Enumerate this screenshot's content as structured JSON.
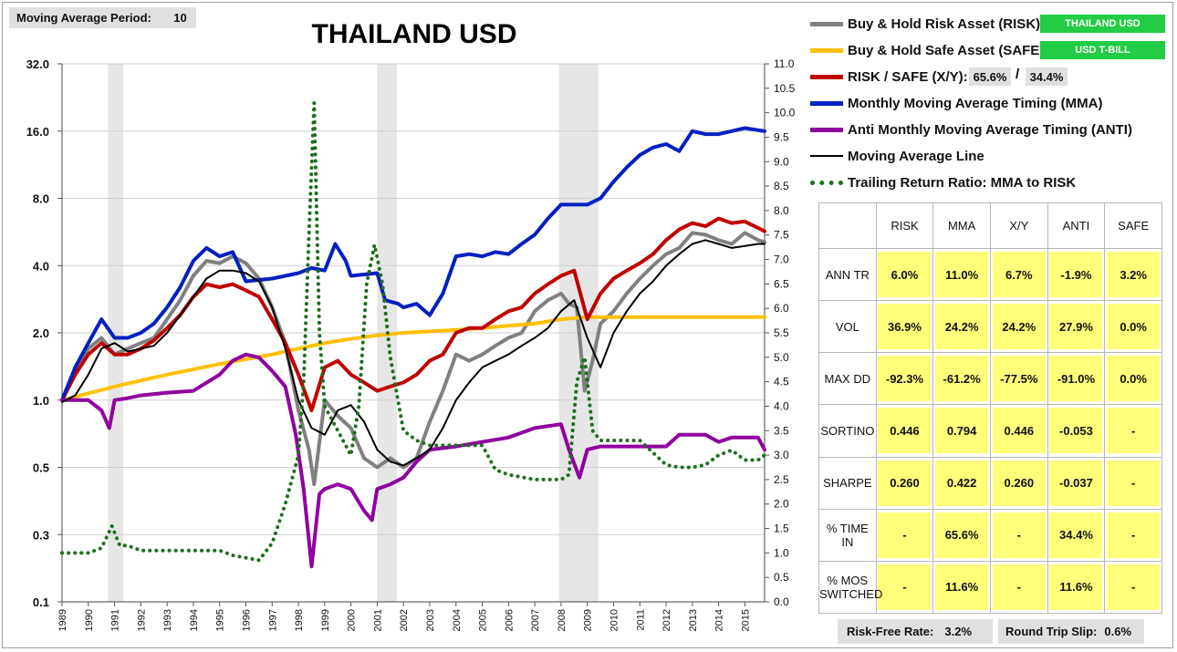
{
  "header": {
    "period_label": "Moving Average Period:",
    "period_value": "10"
  },
  "chart_data": {
    "type": "line",
    "title": "THAILAND USD",
    "y_left": {
      "scale": "log2",
      "ticks": [
        "32.0",
        "16.0",
        "8.0",
        "4.0",
        "2.0",
        "1.0",
        "0.5",
        "0.3",
        "0.1"
      ],
      "range": [
        0.125,
        32
      ]
    },
    "y_right": {
      "scale": "linear",
      "range": [
        0,
        11
      ],
      "ticks": [
        "11.0",
        "10.5",
        "10.0",
        "9.5",
        "9.0",
        "8.5",
        "8.0",
        "7.5",
        "7.0",
        "6.5",
        "6.0",
        "5.5",
        "5.0",
        "4.5",
        "4.0",
        "3.5",
        "3.0",
        "2.5",
        "2.0",
        "1.5",
        "1.0",
        "0.5",
        "0.0"
      ]
    },
    "x_ticks": [
      "1989",
      "1990",
      "1991",
      "1992",
      "1993",
      "1994",
      "1995",
      "1996",
      "1997",
      "1998",
      "1999",
      "2000",
      "2001",
      "2002",
      "2003",
      "2004",
      "2005",
      "2006",
      "2007",
      "2008",
      "2009",
      "2010",
      "2011",
      "2012",
      "2013",
      "2014",
      "2015"
    ],
    "x_range": [
      1989.0,
      2015.75
    ],
    "shaded_periods": [
      [
        1990.75,
        1991.33
      ],
      [
        2001.0,
        2001.75
      ],
      [
        2007.92,
        2009.42
      ]
    ],
    "series": [
      {
        "name": "Buy & Hold Risk Asset (RISK):",
        "color": "#808080",
        "width": 4,
        "axis": "left",
        "x": [
          1989.0,
          1989.5,
          1990.0,
          1990.5,
          1991.0,
          1991.5,
          1992.0,
          1992.5,
          1993.0,
          1993.5,
          1994.0,
          1994.5,
          1995.0,
          1995.5,
          1996.0,
          1996.5,
          1997.0,
          1997.5,
          1998.0,
          1998.4,
          1998.6,
          1999.0,
          1999.5,
          2000.0,
          2000.5,
          2001.0,
          2001.5,
          2002.0,
          2002.5,
          2003.0,
          2003.5,
          2004.0,
          2004.5,
          2005.0,
          2005.5,
          2006.0,
          2006.5,
          2007.0,
          2007.5,
          2008.0,
          2008.3,
          2008.6,
          2008.9,
          2009.2,
          2009.5,
          2010.0,
          2010.5,
          2011.0,
          2011.5,
          2012.0,
          2012.5,
          2013.0,
          2013.5,
          2014.0,
          2014.5,
          2015.0,
          2015.5,
          2015.75
        ],
        "y": [
          1.0,
          1.3,
          1.7,
          1.9,
          1.6,
          1.7,
          1.8,
          1.9,
          2.3,
          2.8,
          3.6,
          4.2,
          4.1,
          4.4,
          4.1,
          3.5,
          2.6,
          1.8,
          0.9,
          0.6,
          0.42,
          1.0,
          0.85,
          0.75,
          0.55,
          0.5,
          0.55,
          0.5,
          0.55,
          0.8,
          1.1,
          1.6,
          1.5,
          1.6,
          1.75,
          1.9,
          2.0,
          2.5,
          2.8,
          3.0,
          2.7,
          2.6,
          1.1,
          1.5,
          2.2,
          2.5,
          3.0,
          3.5,
          4.0,
          4.5,
          4.8,
          5.6,
          5.5,
          5.2,
          5.0,
          5.6,
          5.2,
          5.1
        ]
      },
      {
        "name": "Buy & Hold Safe Asset (SAFE):",
        "color": "#ffc000",
        "width": 4,
        "axis": "left",
        "x": [
          1989.0,
          1991.0,
          1993.0,
          1995.0,
          1997.0,
          1998.0,
          1999.0,
          2000.0,
          2001.0,
          2002.0,
          2003.0,
          2004.0,
          2005.0,
          2006.0,
          2007.0,
          2008.0,
          2009.0,
          2010.0,
          2012.0,
          2015.75
        ],
        "y": [
          1.0,
          1.15,
          1.3,
          1.45,
          1.6,
          1.7,
          1.8,
          1.88,
          1.95,
          2.0,
          2.03,
          2.06,
          2.1,
          2.15,
          2.2,
          2.3,
          2.35,
          2.35,
          2.35,
          2.35
        ]
      },
      {
        "name": "RISK / SAFE (X/Y):",
        "color": "#c00000",
        "width": 4,
        "axis": "left",
        "x": [
          1989.0,
          1989.5,
          1990.0,
          1990.5,
          1991.0,
          1991.5,
          1992.0,
          1992.5,
          1993.0,
          1993.5,
          1994.0,
          1994.5,
          1995.0,
          1995.5,
          1996.0,
          1996.5,
          1997.0,
          1997.5,
          1998.0,
          1998.5,
          1999.0,
          1999.5,
          2000.0,
          2000.5,
          2001.0,
          2001.5,
          2002.0,
          2002.5,
          2003.0,
          2003.5,
          2004.0,
          2004.5,
          2005.0,
          2005.5,
          2006.0,
          2006.5,
          2007.0,
          2007.5,
          2008.0,
          2008.5,
          2009.0,
          2009.5,
          2010.0,
          2010.5,
          2011.0,
          2011.5,
          2012.0,
          2012.5,
          2013.0,
          2013.5,
          2014.0,
          2014.5,
          2015.0,
          2015.5,
          2015.75
        ],
        "y": [
          1.0,
          1.3,
          1.6,
          1.8,
          1.6,
          1.6,
          1.7,
          1.85,
          2.1,
          2.4,
          2.9,
          3.3,
          3.2,
          3.3,
          3.1,
          2.9,
          2.3,
          1.8,
          1.3,
          0.9,
          1.4,
          1.5,
          1.3,
          1.2,
          1.1,
          1.15,
          1.2,
          1.3,
          1.5,
          1.6,
          2.0,
          2.1,
          2.1,
          2.3,
          2.5,
          2.6,
          3.0,
          3.3,
          3.6,
          3.8,
          2.3,
          3.0,
          3.5,
          3.8,
          4.1,
          4.5,
          5.2,
          5.8,
          6.2,
          6.0,
          6.5,
          6.2,
          6.3,
          5.9,
          5.7
        ]
      },
      {
        "name": "Monthly Moving Average Timing (MMA)",
        "color": "#0020c0",
        "width": 4,
        "axis": "left",
        "x": [
          1989.0,
          1989.5,
          1990.0,
          1990.5,
          1991.0,
          1991.5,
          1992.0,
          1992.5,
          1993.0,
          1993.5,
          1994.0,
          1994.5,
          1995.0,
          1995.5,
          1996.0,
          1997.0,
          1998.0,
          1998.5,
          1999.0,
          1999.4,
          1999.8,
          2000.0,
          2001.0,
          2001.3,
          2001.8,
          2002.0,
          2002.5,
          2003.0,
          2003.5,
          2004.0,
          2004.5,
          2005.0,
          2005.5,
          2006.0,
          2006.5,
          2007.0,
          2007.5,
          2008.0,
          2009.0,
          2009.5,
          2010.0,
          2010.5,
          2011.0,
          2011.5,
          2012.0,
          2012.5,
          2013.0,
          2013.5,
          2014.0,
          2014.5,
          2015.0,
          2015.75
        ],
        "y": [
          1.0,
          1.4,
          1.8,
          2.3,
          1.9,
          1.9,
          2.0,
          2.2,
          2.6,
          3.2,
          4.2,
          4.8,
          4.4,
          4.6,
          3.4,
          3.5,
          3.7,
          3.9,
          3.8,
          5.0,
          4.2,
          3.6,
          3.7,
          2.8,
          2.7,
          2.6,
          2.7,
          2.4,
          3.0,
          4.4,
          4.5,
          4.4,
          4.6,
          4.5,
          5.0,
          5.5,
          6.5,
          7.5,
          7.5,
          8.0,
          9.5,
          11.0,
          12.5,
          13.5,
          14.0,
          13.0,
          16.0,
          15.5,
          15.5,
          16.0,
          16.5,
          16.0
        ]
      },
      {
        "name": "Anti Monthly Moving Average Timing (ANTI)",
        "color": "#9000a0",
        "width": 4,
        "axis": "left",
        "x": [
          1989.0,
          1990.0,
          1990.5,
          1990.8,
          1991.0,
          1991.5,
          1992.0,
          1993.0,
          1994.0,
          1995.0,
          1995.5,
          1996.0,
          1996.5,
          1997.0,
          1997.5,
          1997.9,
          1998.2,
          1998.5,
          1998.8,
          1999.0,
          1999.5,
          2000.0,
          2000.5,
          2000.8,
          2001.0,
          2001.5,
          2002.0,
          2002.5,
          2003.0,
          2004.0,
          2005.0,
          2006.0,
          2007.0,
          2008.0,
          2008.3,
          2008.7,
          2009.0,
          2009.5,
          2010.0,
          2011.0,
          2012.0,
          2012.5,
          2013.0,
          2013.5,
          2014.0,
          2014.5,
          2015.0,
          2015.5,
          2015.75
        ],
        "y": [
          1.0,
          1.0,
          0.9,
          0.75,
          1.0,
          1.02,
          1.05,
          1.08,
          1.1,
          1.3,
          1.5,
          1.6,
          1.55,
          1.35,
          1.15,
          0.7,
          0.4,
          0.18,
          0.38,
          0.4,
          0.42,
          0.4,
          0.32,
          0.29,
          0.4,
          0.42,
          0.45,
          0.53,
          0.6,
          0.62,
          0.65,
          0.68,
          0.75,
          0.78,
          0.6,
          0.45,
          0.6,
          0.62,
          0.62,
          0.62,
          0.62,
          0.7,
          0.7,
          0.7,
          0.65,
          0.68,
          0.68,
          0.68,
          0.6
        ]
      },
      {
        "name": "Moving Average Line",
        "color": "#000000",
        "width": 2,
        "axis": "left",
        "x": [
          1989.0,
          1989.5,
          1990.0,
          1990.5,
          1991.0,
          1991.5,
          1992.0,
          1992.5,
          1993.0,
          1993.5,
          1994.0,
          1994.5,
          1995.0,
          1995.5,
          1996.0,
          1996.5,
          1997.0,
          1997.5,
          1998.0,
          1998.5,
          1999.0,
          1999.5,
          2000.0,
          2000.5,
          2001.0,
          2001.5,
          2002.0,
          2002.5,
          2003.0,
          2003.5,
          2004.0,
          2004.5,
          2005.0,
          2005.5,
          2006.0,
          2006.5,
          2007.0,
          2007.5,
          2008.0,
          2008.5,
          2009.0,
          2009.5,
          2010.0,
          2010.5,
          2011.0,
          2011.5,
          2012.0,
          2012.5,
          2013.0,
          2013.5,
          2014.0,
          2014.5,
          2015.0,
          2015.5,
          2015.75
        ],
        "y": [
          0.98,
          1.05,
          1.3,
          1.7,
          1.8,
          1.65,
          1.7,
          1.75,
          2.0,
          2.4,
          2.9,
          3.5,
          3.8,
          3.8,
          3.7,
          3.4,
          2.6,
          1.7,
          1.0,
          0.75,
          0.7,
          0.9,
          0.95,
          0.8,
          0.6,
          0.53,
          0.51,
          0.55,
          0.6,
          0.75,
          1.0,
          1.2,
          1.4,
          1.5,
          1.6,
          1.75,
          1.9,
          2.1,
          2.5,
          2.8,
          1.9,
          1.4,
          2.0,
          2.5,
          3.0,
          3.4,
          4.0,
          4.5,
          5.0,
          5.2,
          5.0,
          4.8,
          4.9,
          5.0,
          5.0
        ]
      },
      {
        "name": "Trailing Return Ratio: MMA to RISK",
        "color": "#1e6e1e",
        "width": 4,
        "dotted": true,
        "axis": "right",
        "x": [
          1989.0,
          1990.0,
          1990.5,
          1990.9,
          1991.2,
          1991.5,
          1992.0,
          1993.0,
          1994.0,
          1995.0,
          1995.5,
          1996.0,
          1996.5,
          1997.0,
          1997.5,
          1998.0,
          1998.2,
          1998.4,
          1998.6,
          1998.8,
          1999.0,
          1999.5,
          2000.0,
          2000.3,
          2000.6,
          2000.9,
          2001.2,
          2001.5,
          2002.0,
          2002.5,
          2003.0,
          2004.0,
          2005.0,
          2005.5,
          2006.0,
          2007.0,
          2008.0,
          2008.3,
          2008.6,
          2008.9,
          2009.2,
          2009.5,
          2010.0,
          2011.0,
          2012.0,
          2012.5,
          2013.0,
          2013.5,
          2014.0,
          2014.5,
          2015.0,
          2015.5,
          2015.75
        ],
        "y": [
          1.0,
          1.0,
          1.1,
          1.55,
          1.15,
          1.15,
          1.05,
          1.05,
          1.05,
          1.05,
          0.95,
          0.9,
          0.85,
          1.2,
          2.0,
          3.0,
          4.5,
          7.5,
          10.2,
          5.5,
          4.0,
          3.5,
          3.0,
          4.0,
          6.5,
          7.3,
          6.5,
          5.0,
          3.5,
          3.3,
          3.2,
          3.2,
          3.2,
          2.7,
          2.6,
          2.5,
          2.5,
          2.6,
          4.5,
          5.0,
          3.5,
          3.3,
          3.3,
          3.3,
          2.8,
          2.75,
          2.75,
          2.8,
          3.0,
          3.1,
          2.9,
          2.9,
          3.0
        ]
      }
    ]
  },
  "legend": {
    "risk_tag": "THAILAND USD",
    "safe_tag": "USD T-BILL",
    "xy_risk": "65.6%",
    "xy_sep": "/",
    "xy_safe": "34.4%"
  },
  "stats_table": {
    "columns": [
      "RISK",
      "MMA",
      "X/Y",
      "ANTI",
      "SAFE"
    ],
    "rows": [
      {
        "label": "ANN TR",
        "values": [
          "6.0%",
          "11.0%",
          "6.7%",
          "-1.9%",
          "3.2%"
        ]
      },
      {
        "label": "VOL",
        "values": [
          "36.9%",
          "24.2%",
          "24.2%",
          "27.9%",
          "0.0%"
        ]
      },
      {
        "label": "MAX DD",
        "values": [
          "-92.3%",
          "-61.2%",
          "-77.5%",
          "-91.0%",
          "0.0%"
        ]
      },
      {
        "label": "SORTINO",
        "values": [
          "0.446",
          "0.794",
          "0.446",
          "-0.053",
          "-"
        ]
      },
      {
        "label": "SHARPE",
        "values": [
          "0.260",
          "0.422",
          "0.260",
          "-0.037",
          "-"
        ]
      },
      {
        "label": "% TIME IN",
        "values": [
          "-",
          "65.6%",
          "-",
          "34.4%",
          "-"
        ]
      },
      {
        "label": "% MOS SWITCHED",
        "values": [
          "-",
          "11.6%",
          "-",
          "11.6%",
          "-"
        ]
      }
    ]
  },
  "footer": {
    "rf_label": "Risk-Free Rate:",
    "rf_value": "3.2%",
    "slip_label": "Round Trip Slip:",
    "slip_value": "0.6%"
  },
  "colors": {
    "highlight": "#ffff7a",
    "tag_green": "#22cc44",
    "panel_grey": "#e0e0e0"
  }
}
